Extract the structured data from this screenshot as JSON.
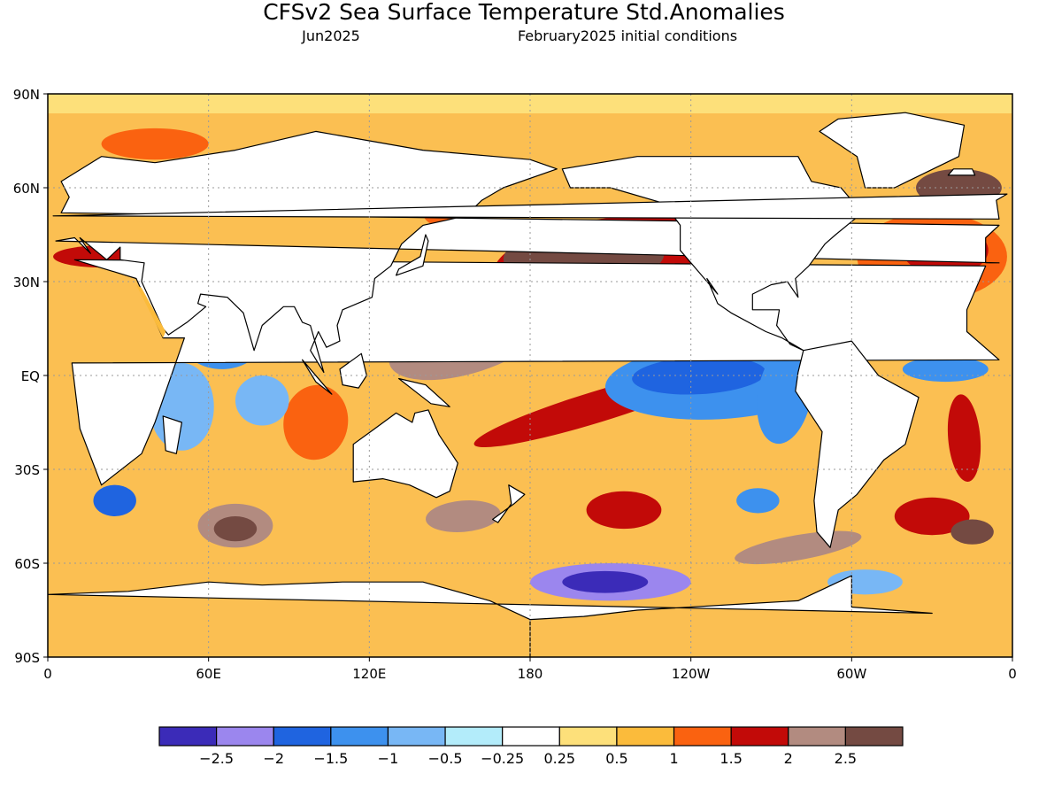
{
  "header": {
    "title": "CFSv2 Sea Surface Temperature Std.Anomalies",
    "target_month": "Jun2025",
    "initial_conditions": "February2025 initial conditions"
  },
  "map": {
    "projection": "equirectangular",
    "lon_range": [
      0,
      360
    ],
    "lat_range": [
      -90,
      90
    ],
    "grid": true,
    "lat_labels": [
      {
        "lat": 90,
        "label": "90N"
      },
      {
        "lat": 60,
        "label": "60N"
      },
      {
        "lat": 30,
        "label": "30N"
      },
      {
        "lat": 0,
        "label": "EQ"
      },
      {
        "lat": -30,
        "label": "30S"
      },
      {
        "lat": -60,
        "label": "60S"
      },
      {
        "lat": -90,
        "label": "90S"
      }
    ],
    "lon_labels": [
      {
        "lon": 0,
        "label": "0"
      },
      {
        "lon": 60,
        "label": "60E"
      },
      {
        "lon": 120,
        "label": "120E"
      },
      {
        "lon": 180,
        "label": "180"
      },
      {
        "lon": 240,
        "label": "120W"
      },
      {
        "lon": 300,
        "label": "60W"
      },
      {
        "lon": 360,
        "label": "0"
      }
    ],
    "colors": {
      "land": "#ffffff",
      "sea_ice_band": "#fde07a",
      "coast": "#000000",
      "grid": "#9a9a9a"
    }
  },
  "colorbar": {
    "colors": [
      "#3b2bb8",
      "#9b86ee",
      "#1f64e0",
      "#3d91ee",
      "#78b7f5",
      "#b3ecfa",
      "#ffffff",
      "#fde07a",
      "#fbbb3b",
      "#fa6210",
      "#c20a08",
      "#b28b80",
      "#744a42"
    ],
    "labels": [
      "−2.5",
      "−2",
      "−1.5",
      "−1",
      "−0.5",
      "−0.25",
      "0.25",
      "0.5",
      "1",
      "1.5",
      "2",
      "2.5"
    ]
  },
  "anomaly_regions": [
    {
      "id": "npac-warm-blob",
      "lon": 218,
      "lat": 35,
      "rx": 52,
      "ry": 16,
      "rot": -4,
      "level": 10
    },
    {
      "id": "npac-warm-core",
      "lon": 200,
      "lat": 38,
      "rx": 30,
      "ry": 9,
      "rot": -2,
      "level": 12
    },
    {
      "id": "npac-cold-band-pac",
      "lon": 178,
      "lat": 28,
      "rx": 24,
      "ry": 4,
      "rot": -14,
      "level": 6
    },
    {
      "id": "wpac-warm",
      "lon": 158,
      "lat": 12,
      "rx": 32,
      "ry": 11,
      "rot": -18,
      "level": 11
    },
    {
      "id": "wpac-core",
      "lon": 155,
      "lat": 13,
      "rx": 25,
      "ry": 7,
      "rot": -15,
      "level": 12
    },
    {
      "id": "swpac-diag",
      "lon": 205,
      "lat": -10,
      "rx": 48,
      "ry": 5,
      "rot": -17,
      "level": 10
    },
    {
      "id": "enpac-cold",
      "lon": 250,
      "lat": -2,
      "rx": 42,
      "ry": 12,
      "rot": -3,
      "level": 3
    },
    {
      "id": "epac-cold-core",
      "lon": 243,
      "lat": 0,
      "rx": 25,
      "ry": 6,
      "rot": -3,
      "level": 2
    },
    {
      "id": "epac-cold-coast",
      "lon": 275,
      "lat": -6,
      "rx": 10,
      "ry": 16,
      "rot": 10,
      "level": 3
    },
    {
      "id": "natl-warm",
      "lon": 330,
      "lat": 38,
      "rx": 28,
      "ry": 14,
      "rot": 0,
      "level": 9
    },
    {
      "id": "natl-core",
      "lon": 335,
      "lat": 40,
      "rx": 16,
      "ry": 8,
      "rot": 0,
      "level": 10
    },
    {
      "id": "natl-sub",
      "lon": 340,
      "lat": 60,
      "rx": 16,
      "ry": 6,
      "rot": 0,
      "level": 12
    },
    {
      "id": "trop-atl-cold",
      "lon": 335,
      "lat": 2,
      "rx": 16,
      "ry": 4,
      "rot": 0,
      "level": 3
    },
    {
      "id": "satl-warm",
      "lon": 342,
      "lat": -20,
      "rx": 6,
      "ry": 14,
      "rot": -5,
      "level": 10
    },
    {
      "id": "indian-nw-cold",
      "lon": 65,
      "lat": 10,
      "rx": 14,
      "ry": 8,
      "rot": 0,
      "level": 3
    },
    {
      "id": "indian-eq-cold",
      "lon": 50,
      "lat": -10,
      "rx": 12,
      "ry": 14,
      "rot": 0,
      "level": 4
    },
    {
      "id": "indian-east-warm",
      "lon": 100,
      "lat": -15,
      "rx": 12,
      "ry": 12,
      "rot": 10,
      "level": 9
    },
    {
      "id": "indian-central-cold",
      "lon": 80,
      "lat": -8,
      "rx": 10,
      "ry": 8,
      "rot": 0,
      "level": 4
    },
    {
      "id": "sio-warm",
      "lon": 70,
      "lat": -48,
      "rx": 14,
      "ry": 7,
      "rot": 0,
      "level": 11
    },
    {
      "id": "sio-core",
      "lon": 70,
      "lat": -49,
      "rx": 8,
      "ry": 4,
      "rot": 0,
      "level": 12
    },
    {
      "id": "sio-cold-west",
      "lon": 25,
      "lat": -40,
      "rx": 8,
      "ry": 5,
      "rot": 0,
      "level": 2
    },
    {
      "id": "tasman-warm",
      "lon": 155,
      "lat": -45,
      "rx": 14,
      "ry": 5,
      "rot": -5,
      "level": 11
    },
    {
      "id": "spac-warm-1",
      "lon": 215,
      "lat": -43,
      "rx": 14,
      "ry": 6,
      "rot": 0,
      "level": 10
    },
    {
      "id": "spac-warm-2",
      "lon": 280,
      "lat": -55,
      "rx": 24,
      "ry": 4,
      "rot": -10,
      "level": 11
    },
    {
      "id": "spac-cold-mid",
      "lon": 265,
      "lat": -40,
      "rx": 8,
      "ry": 4,
      "rot": 0,
      "level": 3
    },
    {
      "id": "ross-cold",
      "lon": 210,
      "lat": -66,
      "rx": 30,
      "ry": 6,
      "rot": 0,
      "level": 1
    },
    {
      "id": "ross-cold-core",
      "lon": 208,
      "lat": -66,
      "rx": 16,
      "ry": 3.5,
      "rot": 0,
      "level": 0
    },
    {
      "id": "weddell-cold",
      "lon": 305,
      "lat": -66,
      "rx": 14,
      "ry": 4,
      "rot": 0,
      "level": 4
    },
    {
      "id": "so-atl-warm",
      "lon": 330,
      "lat": -45,
      "rx": 14,
      "ry": 6,
      "rot": 0,
      "level": 10
    },
    {
      "id": "so-atl-core",
      "lon": 345,
      "lat": -50,
      "rx": 8,
      "ry": 4,
      "rot": 0,
      "level": 12
    },
    {
      "id": "arctic-warm-eur",
      "lon": 40,
      "lat": 74,
      "rx": 20,
      "ry": 5,
      "rot": 0,
      "level": 9
    },
    {
      "id": "med-warm",
      "lon": 20,
      "lat": 38,
      "rx": 18,
      "ry": 3.5,
      "rot": 0,
      "level": 10
    },
    {
      "id": "sea-okhotsk-warm",
      "lon": 150,
      "lat": 52,
      "rx": 10,
      "ry": 5,
      "rot": 0,
      "level": 9
    }
  ],
  "land_shapes": {
    "africa": [
      [
        -17,
        21
      ],
      [
        -10,
        35
      ],
      [
        10,
        37
      ],
      [
        33,
        31
      ],
      [
        43,
        12
      ],
      [
        51,
        12
      ],
      [
        40,
        -15
      ],
      [
        35,
        -25
      ],
      [
        20,
        -35
      ],
      [
        12,
        -17
      ],
      [
        9,
        4
      ],
      [
        -5,
        5
      ],
      [
        -17,
        14
      ]
    ],
    "eurasia": [
      [
        -10,
        36
      ],
      [
        -10,
        44
      ],
      [
        -5,
        48
      ],
      [
        5,
        52
      ],
      [
        8,
        57
      ],
      [
        5,
        62
      ],
      [
        20,
        70
      ],
      [
        40,
        68
      ],
      [
        70,
        72
      ],
      [
        100,
        78
      ],
      [
        140,
        72
      ],
      [
        180,
        69
      ],
      [
        190,
        66
      ],
      [
        170,
        60
      ],
      [
        162,
        56
      ],
      [
        156,
        51
      ],
      [
        140,
        48
      ],
      [
        132,
        42
      ],
      [
        128,
        35
      ],
      [
        122,
        31
      ],
      [
        121,
        25
      ],
      [
        110,
        21
      ],
      [
        108,
        16
      ],
      [
        109,
        11
      ],
      [
        104,
        9
      ],
      [
        101,
        14
      ],
      [
        98,
        8
      ],
      [
        103,
        1
      ],
      [
        98,
        16
      ],
      [
        95,
        17
      ],
      [
        92,
        22
      ],
      [
        88,
        22
      ],
      [
        80,
        16
      ],
      [
        77,
        8
      ],
      [
        73,
        20
      ],
      [
        67,
        25
      ],
      [
        57,
        26
      ],
      [
        56,
        23
      ],
      [
        59,
        22
      ],
      [
        52,
        17
      ],
      [
        45,
        13
      ],
      [
        43,
        15
      ],
      [
        35,
        30
      ],
      [
        36,
        36
      ],
      [
        27,
        37
      ],
      [
        27,
        41
      ],
      [
        22,
        37
      ],
      [
        12,
        44
      ],
      [
        16,
        39
      ],
      [
        10,
        44
      ],
      [
        3,
        43
      ],
      [
        -5,
        36
      ]
    ],
    "arabia_red_gap": [
      [
        33,
        29
      ],
      [
        43,
        12
      ],
      [
        44,
        14
      ],
      [
        35,
        28
      ]
    ],
    "n_america": [
      [
        -168,
        66
      ],
      [
        -140,
        70
      ],
      [
        -100,
        70
      ],
      [
        -80,
        70
      ],
      [
        -75,
        62
      ],
      [
        -64,
        60
      ],
      [
        -56,
        52
      ],
      [
        -66,
        45
      ],
      [
        -70,
        42
      ],
      [
        -76,
        35
      ],
      [
        -81,
        31
      ],
      [
        -80,
        25
      ],
      [
        -84,
        30
      ],
      [
        -90,
        29
      ],
      [
        -97,
        26
      ],
      [
        -97,
        21
      ],
      [
        -87,
        21
      ],
      [
        -88,
        16
      ],
      [
        -83,
        10
      ],
      [
        -78,
        8
      ],
      [
        -80,
        9
      ],
      [
        -86,
        12
      ],
      [
        -92,
        14
      ],
      [
        -105,
        20
      ],
      [
        -110,
        23
      ],
      [
        -114,
        31
      ],
      [
        -110,
        26
      ],
      [
        -117,
        33
      ],
      [
        -124,
        40
      ],
      [
        -124,
        48
      ],
      [
        -130,
        55
      ],
      [
        -150,
        60
      ],
      [
        -165,
        60
      ]
    ],
    "greenland": [
      [
        -55,
        60
      ],
      [
        -44,
        60
      ],
      [
        -20,
        70
      ],
      [
        -18,
        80
      ],
      [
        -40,
        84
      ],
      [
        -65,
        82
      ],
      [
        -72,
        78
      ],
      [
        -58,
        70
      ]
    ],
    "s_america": [
      [
        -78,
        8
      ],
      [
        -60,
        11
      ],
      [
        -50,
        0
      ],
      [
        -35,
        -7
      ],
      [
        -40,
        -22
      ],
      [
        -48,
        -27
      ],
      [
        -58,
        -38
      ],
      [
        -65,
        -43
      ],
      [
        -68,
        -55
      ],
      [
        -73,
        -50
      ],
      [
        -74,
        -40
      ],
      [
        -71,
        -18
      ],
      [
        -81,
        -5
      ],
      [
        -80,
        1
      ]
    ],
    "australia": [
      [
        114,
        -22
      ],
      [
        114,
        -34
      ],
      [
        125,
        -33
      ],
      [
        135,
        -35
      ],
      [
        145,
        -39
      ],
      [
        150,
        -37
      ],
      [
        153,
        -28
      ],
      [
        146,
        -19
      ],
      [
        142,
        -11
      ],
      [
        137,
        -12
      ],
      [
        136,
        -15
      ],
      [
        130,
        -12
      ],
      [
        122,
        -17
      ]
    ],
    "antarctica": [
      [
        -180,
        -78
      ],
      [
        -180,
        -90
      ],
      [
        180,
        -90
      ],
      [
        180,
        -78
      ],
      [
        165,
        -72
      ],
      [
        140,
        -66
      ],
      [
        110,
        -66
      ],
      [
        80,
        -67
      ],
      [
        60,
        -66
      ],
      [
        30,
        -69
      ],
      [
        0,
        -70
      ],
      [
        -30,
        -76
      ],
      [
        -60,
        -74
      ],
      [
        -60,
        -64
      ],
      [
        -70,
        -68
      ],
      [
        -80,
        -72
      ],
      [
        -100,
        -73
      ],
      [
        -140,
        -75
      ],
      [
        -160,
        -77
      ]
    ],
    "madagascar": [
      [
        43,
        -13
      ],
      [
        50,
        -15
      ],
      [
        48,
        -25
      ],
      [
        44,
        -24
      ]
    ],
    "new_guinea": [
      [
        131,
        -1
      ],
      [
        141,
        -3
      ],
      [
        150,
        -10
      ],
      [
        143,
        -9
      ],
      [
        137,
        -5
      ]
    ],
    "borneo": [
      [
        109,
        2
      ],
      [
        117,
        7
      ],
      [
        119,
        0
      ],
      [
        116,
        -4
      ],
      [
        110,
        -3
      ]
    ],
    "sumatra": [
      [
        95,
        5
      ],
      [
        106,
        -6
      ],
      [
        100,
        -2
      ]
    ],
    "japan": [
      [
        130,
        32
      ],
      [
        140,
        35
      ],
      [
        142,
        43
      ],
      [
        141,
        45
      ],
      [
        139,
        38
      ],
      [
        131,
        34
      ]
    ],
    "uk": [
      [
        -5,
        50
      ],
      [
        2,
        51
      ],
      [
        -2,
        58
      ],
      [
        -6,
        56
      ]
    ],
    "nz": [
      [
        166,
        -46
      ],
      [
        174,
        -41
      ],
      [
        178,
        -38
      ],
      [
        172,
        -35
      ],
      [
        173,
        -41
      ],
      [
        168,
        -47
      ]
    ],
    "iceland": [
      [
        -24,
        64
      ],
      [
        -14,
        64
      ],
      [
        -15,
        66
      ],
      [
        -22,
        66
      ]
    ]
  }
}
